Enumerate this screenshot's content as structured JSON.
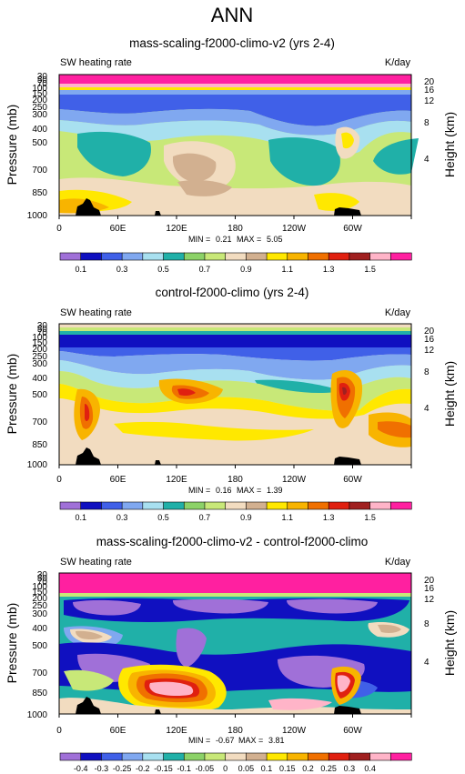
{
  "figure": {
    "title": "ANN"
  },
  "chart_data": [
    {
      "type": "heatmap",
      "title": "mass-scaling-f2000-climo-v2 (yrs 2-4)",
      "subtitle_left": "SW heating rate",
      "units": "K/day",
      "ylabel": "Pressure (mb)",
      "ylabel_right": "Height (km)",
      "x_ticks": [
        "0",
        "60E",
        "120E",
        "180",
        "120W",
        "60W"
      ],
      "y_ticks": [
        "30",
        "50",
        "70",
        "100",
        "150",
        "200",
        "250",
        "300",
        "400",
        "500",
        "700",
        "850",
        "1000"
      ],
      "y_ticks_right": [
        "20",
        "16",
        "12",
        "8",
        "4"
      ],
      "min_label": "MIN =",
      "min_value": "0.21",
      "max_label": "MAX =",
      "max_value": "5.05",
      "colorbar_labels": [
        "0.1",
        "0.3",
        "0.5",
        "0.7",
        "0.9",
        "1.1",
        "1.3",
        "1.5"
      ],
      "colors": [
        "#a070d8",
        "#1010c0",
        "#4060e8",
        "#80a8f0",
        "#a8e0f0",
        "#20b0a8",
        "#8cd268",
        "#c8e878",
        "#f2dcc0",
        "#d2b090",
        "#ffe800",
        "#f8b400",
        "#f07000",
        "#e02010",
        "#a02020",
        "#ffb4c8",
        "#ff20a0"
      ]
    },
    {
      "type": "heatmap",
      "title": "control-f2000-climo (yrs 2-4)",
      "subtitle_left": "SW heating rate",
      "units": "K/day",
      "ylabel": "Pressure (mb)",
      "ylabel_right": "Height (km)",
      "x_ticks": [
        "0",
        "60E",
        "120E",
        "180",
        "120W",
        "60W"
      ],
      "y_ticks": [
        "30",
        "50",
        "70",
        "100",
        "150",
        "200",
        "250",
        "300",
        "400",
        "500",
        "700",
        "850",
        "1000"
      ],
      "y_ticks_right": [
        "20",
        "16",
        "12",
        "8",
        "4"
      ],
      "min_label": "MIN =",
      "min_value": "0.16",
      "max_label": "MAX =",
      "max_value": "1.39",
      "colorbar_labels": [
        "0.1",
        "0.3",
        "0.5",
        "0.7",
        "0.9",
        "1.1",
        "1.3",
        "1.5"
      ],
      "colors": [
        "#a070d8",
        "#1010c0",
        "#4060e8",
        "#80a8f0",
        "#a8e0f0",
        "#20b0a8",
        "#8cd268",
        "#c8e878",
        "#f2dcc0",
        "#d2b090",
        "#ffe800",
        "#f8b400",
        "#f07000",
        "#e02010",
        "#a02020",
        "#ffb4c8",
        "#ff20a0"
      ]
    },
    {
      "type": "heatmap",
      "title": "mass-scaling-f2000-climo-v2 - control-f2000-climo",
      "subtitle_left": "SW heating rate",
      "units": "K/day",
      "ylabel": "Pressure (mb)",
      "ylabel_right": "Height (km)",
      "x_ticks": [
        "0",
        "60E",
        "120E",
        "180",
        "120W",
        "60W"
      ],
      "y_ticks": [
        "30",
        "50",
        "70",
        "100",
        "150",
        "200",
        "250",
        "300",
        "400",
        "500",
        "700",
        "850",
        "1000"
      ],
      "y_ticks_right": [
        "20",
        "16",
        "12",
        "8",
        "4"
      ],
      "min_label": "MIN =",
      "min_value": "-0.67",
      "max_label": "MAX =",
      "max_value": "3.81",
      "colorbar_labels": [
        "-0.4",
        "-0.3",
        "-0.25",
        "-0.2",
        "-0.15",
        "-0.1",
        "-0.05",
        "0",
        "0.05",
        "0.1",
        "0.15",
        "0.2",
        "0.25",
        "0.3",
        "0.4"
      ],
      "colors": [
        "#a070d8",
        "#1010c0",
        "#4060e8",
        "#80a8f0",
        "#a8e0f0",
        "#20b0a8",
        "#8cd268",
        "#c8e878",
        "#f2dcc0",
        "#d2b090",
        "#ffe800",
        "#f8b400",
        "#f07000",
        "#e02010",
        "#a02020",
        "#ffb4c8",
        "#ff20a0"
      ]
    }
  ]
}
